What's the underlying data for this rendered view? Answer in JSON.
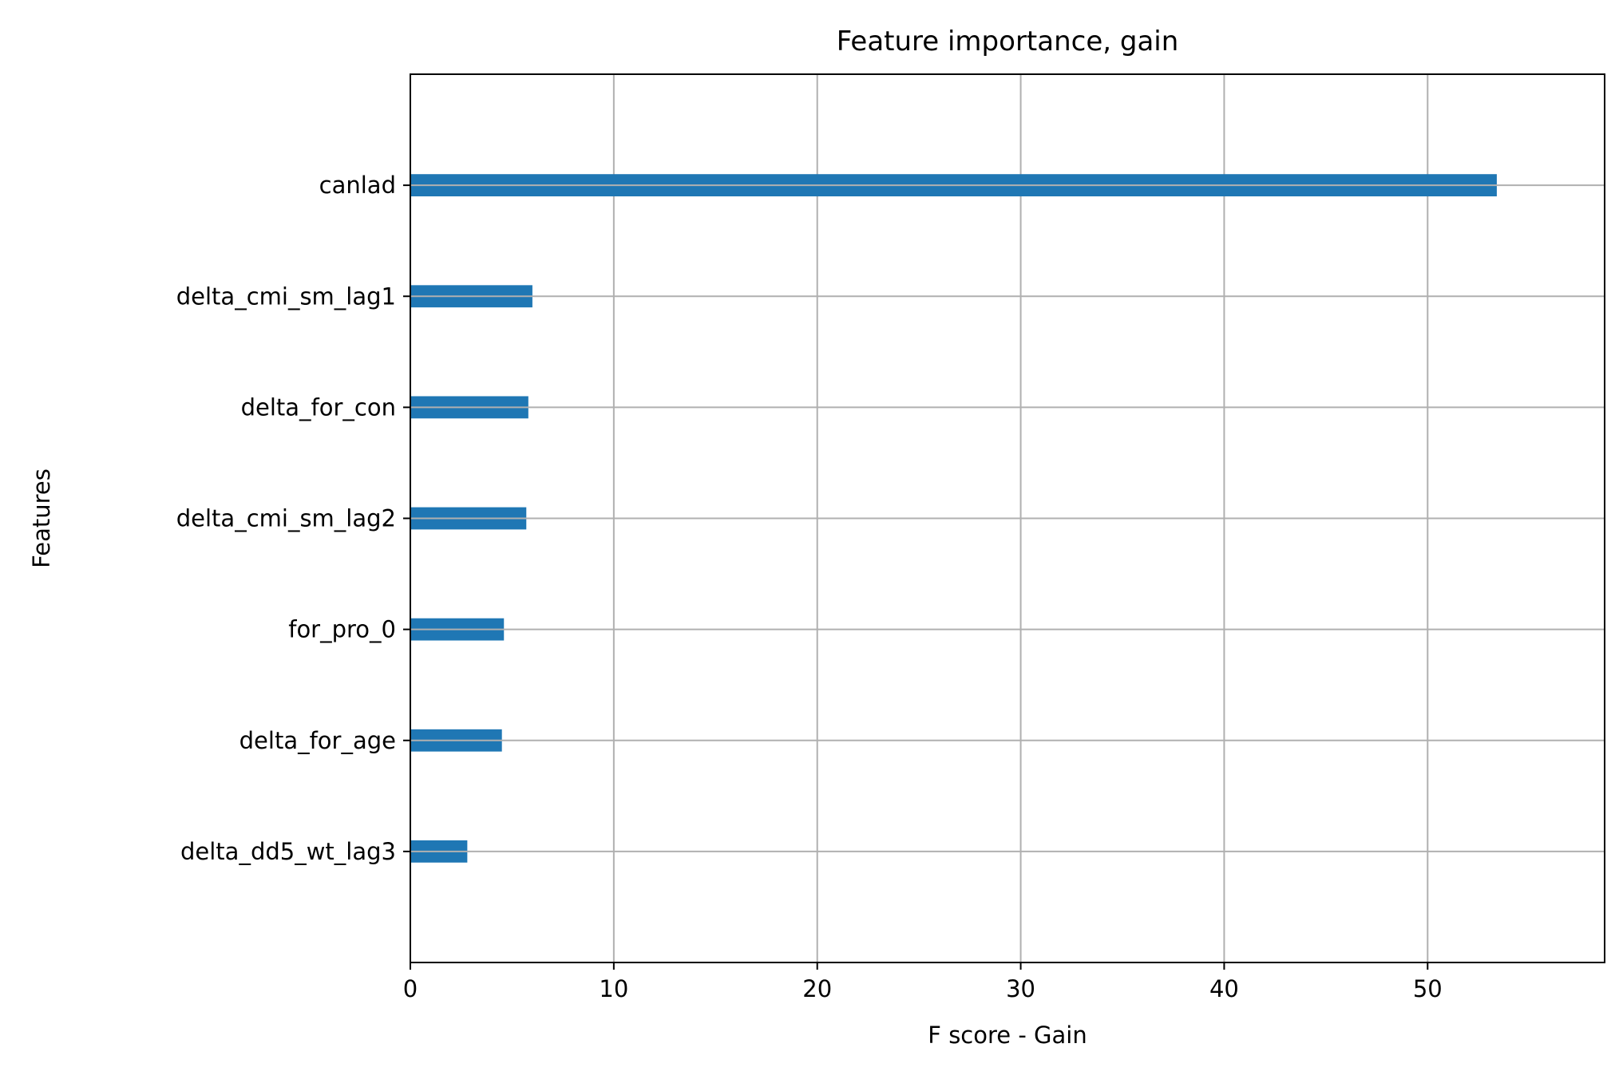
{
  "chart_data": {
    "type": "bar",
    "orientation": "horizontal",
    "title": "Feature importance, gain",
    "xlabel": "F score - Gain",
    "ylabel": "Features",
    "categories": [
      "canlad",
      "delta_cmi_sm_lag1",
      "delta_for_con",
      "delta_cmi_sm_lag2",
      "for_pro_0",
      "delta_for_age",
      "delta_dd5_wt_lag3"
    ],
    "values": [
      53.4,
      6.0,
      5.8,
      5.7,
      4.6,
      4.5,
      2.8
    ],
    "xlim": [
      0,
      58.7
    ],
    "xticks": [
      0,
      10,
      20,
      30,
      40,
      50
    ],
    "xtick_labels": [
      "0",
      "10",
      "20",
      "30",
      "40",
      "50"
    ],
    "grid": true,
    "bar_color": "#1f77b4",
    "grid_color": "#b0b0b0"
  }
}
